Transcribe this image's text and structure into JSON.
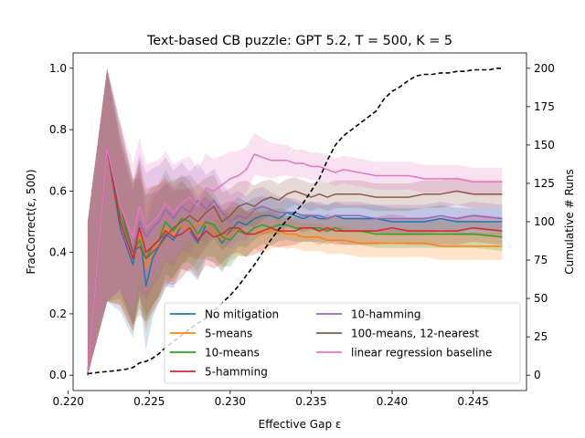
{
  "chart_data": {
    "type": "line",
    "title": "Text-based CB puzzle: GPT 5.2, T = 500, K = 5",
    "xlabel": "Effective Gap ε",
    "ylabel": "FracCorrect(ε, 500)",
    "y2label": "Cumulative # Runs",
    "xlim": [
      0.2203,
      0.2483
    ],
    "ylim": [
      -0.05,
      1.05
    ],
    "y2lim": [
      -10,
      210
    ],
    "xticks": [
      "0.220",
      "0.225",
      "0.230",
      "0.235",
      "0.240",
      "0.245"
    ],
    "xtick_values": [
      0.22,
      0.225,
      0.23,
      0.235,
      0.24,
      0.245
    ],
    "yticks": [
      "0.0",
      "0.2",
      "0.4",
      "0.6",
      "0.8",
      "1.0"
    ],
    "ytick_values": [
      0.0,
      0.2,
      0.4,
      0.6,
      0.8,
      1.0
    ],
    "y2ticks": [
      "0",
      "25",
      "50",
      "75",
      "100",
      "125",
      "150",
      "175",
      "200"
    ],
    "y2tick_values": [
      0,
      25,
      50,
      75,
      100,
      125,
      150,
      175,
      200
    ],
    "legend_position": "lower-right",
    "legend_columns": 2,
    "x": [
      0.2212,
      0.2224,
      0.2232,
      0.224,
      0.2244,
      0.2248,
      0.2252,
      0.2256,
      0.226,
      0.2265,
      0.227,
      0.2275,
      0.228,
      0.2285,
      0.229,
      0.2295,
      0.23,
      0.2305,
      0.231,
      0.2315,
      0.232,
      0.2325,
      0.233,
      0.2335,
      0.234,
      0.2345,
      0.235,
      0.2355,
      0.236,
      0.2365,
      0.237,
      0.238,
      0.239,
      0.24,
      0.241,
      0.242,
      0.243,
      0.244,
      0.245,
      0.2468
    ],
    "series": [
      {
        "name": "No mitigation",
        "color": "#1f77b4",
        "values": [
          0.0,
          0.74,
          0.48,
          0.36,
          0.48,
          0.29,
          0.38,
          0.42,
          0.46,
          0.44,
          0.49,
          0.47,
          0.43,
          0.49,
          0.47,
          0.43,
          0.47,
          0.5,
          0.49,
          0.51,
          0.52,
          0.52,
          0.51,
          0.53,
          0.52,
          0.51,
          0.52,
          0.51,
          0.51,
          0.52,
          0.51,
          0.51,
          0.51,
          0.5,
          0.5,
          0.5,
          0.51,
          0.5,
          0.5,
          0.5
        ]
      },
      {
        "name": "5-means",
        "color": "#ff7f0e",
        "values": [
          0.0,
          0.74,
          0.5,
          0.38,
          0.47,
          0.35,
          0.4,
          0.44,
          0.48,
          0.46,
          0.49,
          0.47,
          0.5,
          0.49,
          0.47,
          0.44,
          0.46,
          0.47,
          0.46,
          0.48,
          0.46,
          0.47,
          0.47,
          0.46,
          0.46,
          0.45,
          0.45,
          0.45,
          0.44,
          0.44,
          0.44,
          0.43,
          0.43,
          0.43,
          0.43,
          0.43,
          0.42,
          0.42,
          0.42,
          0.42
        ]
      },
      {
        "name": "10-means",
        "color": "#2ca02c",
        "values": [
          0.0,
          0.74,
          0.52,
          0.4,
          0.44,
          0.38,
          0.42,
          0.44,
          0.5,
          0.47,
          0.51,
          0.5,
          0.46,
          0.5,
          0.49,
          0.45,
          0.44,
          0.47,
          0.46,
          0.48,
          0.49,
          0.48,
          0.49,
          0.49,
          0.48,
          0.48,
          0.48,
          0.48,
          0.47,
          0.48,
          0.47,
          0.47,
          0.46,
          0.46,
          0.46,
          0.46,
          0.46,
          0.46,
          0.46,
          0.45
        ]
      },
      {
        "name": "5-hamming",
        "color": "#d62728",
        "values": [
          0.0,
          0.74,
          0.5,
          0.38,
          0.48,
          0.4,
          0.42,
          0.44,
          0.47,
          0.45,
          0.46,
          0.48,
          0.44,
          0.47,
          0.45,
          0.46,
          0.48,
          0.48,
          0.46,
          0.46,
          0.47,
          0.48,
          0.47,
          0.47,
          0.47,
          0.48,
          0.48,
          0.47,
          0.48,
          0.47,
          0.47,
          0.47,
          0.47,
          0.48,
          0.47,
          0.47,
          0.47,
          0.47,
          0.48,
          0.47
        ]
      },
      {
        "name": "10-hamming",
        "color": "#9467bd",
        "values": [
          0.0,
          0.74,
          0.55,
          0.4,
          0.5,
          0.45,
          0.48,
          0.5,
          0.54,
          0.51,
          0.55,
          0.53,
          0.57,
          0.54,
          0.57,
          0.53,
          0.5,
          0.52,
          0.51,
          0.54,
          0.55,
          0.54,
          0.53,
          0.53,
          0.53,
          0.52,
          0.52,
          0.52,
          0.51,
          0.52,
          0.52,
          0.52,
          0.51,
          0.51,
          0.51,
          0.51,
          0.52,
          0.51,
          0.52,
          0.51
        ]
      },
      {
        "name": "100-means, 12-nearest",
        "color": "#8c564b",
        "values": [
          0.0,
          0.74,
          0.55,
          0.4,
          0.42,
          0.38,
          0.4,
          0.42,
          0.45,
          0.48,
          0.5,
          0.52,
          0.5,
          0.53,
          0.55,
          0.5,
          0.52,
          0.55,
          0.56,
          0.55,
          0.57,
          0.58,
          0.57,
          0.59,
          0.6,
          0.59,
          0.58,
          0.59,
          0.58,
          0.59,
          0.59,
          0.59,
          0.58,
          0.58,
          0.58,
          0.59,
          0.59,
          0.6,
          0.59,
          0.59
        ]
      },
      {
        "name": "linear regression baseline",
        "color": "#e377c2",
        "values": [
          0.0,
          0.74,
          0.55,
          0.45,
          0.55,
          0.48,
          0.5,
          0.52,
          0.56,
          0.53,
          0.56,
          0.58,
          0.55,
          0.61,
          0.6,
          0.62,
          0.64,
          0.65,
          0.67,
          0.72,
          0.71,
          0.7,
          0.7,
          0.7,
          0.69,
          0.69,
          0.68,
          0.68,
          0.67,
          0.66,
          0.67,
          0.66,
          0.65,
          0.65,
          0.65,
          0.64,
          0.64,
          0.64,
          0.63,
          0.63
        ]
      }
    ],
    "cumulative_runs": {
      "name": "Cumulative # Runs",
      "color": "#000000",
      "style": "dashed",
      "x": [
        0.2212,
        0.222,
        0.223,
        0.2236,
        0.224,
        0.2244,
        0.2248,
        0.2252,
        0.2256,
        0.226,
        0.2265,
        0.227,
        0.2275,
        0.228,
        0.2285,
        0.229,
        0.2295,
        0.23,
        0.2305,
        0.231,
        0.2315,
        0.232,
        0.2325,
        0.233,
        0.2335,
        0.234,
        0.2345,
        0.235,
        0.2355,
        0.236,
        0.2365,
        0.237,
        0.2375,
        0.238,
        0.2385,
        0.239,
        0.2395,
        0.24,
        0.2405,
        0.241,
        0.2415,
        0.242,
        0.2425,
        0.243,
        0.2435,
        0.244,
        0.2445,
        0.245,
        0.2455,
        0.246,
        0.2465,
        0.2468
      ],
      "values": [
        1,
        2,
        3,
        4,
        5,
        8,
        9,
        11,
        14,
        18,
        22,
        26,
        30,
        34,
        37,
        42,
        47,
        52,
        58,
        65,
        72,
        80,
        88,
        95,
        101,
        106,
        112,
        120,
        128,
        140,
        150,
        156,
        160,
        164,
        168,
        172,
        180,
        185,
        188,
        192,
        195,
        196,
        196,
        197,
        197,
        198,
        198,
        199,
        199,
        199,
        200,
        200
      ]
    }
  }
}
